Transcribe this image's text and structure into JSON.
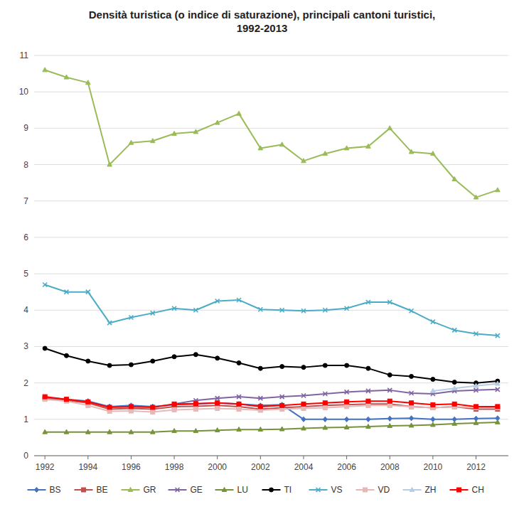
{
  "chart_data": {
    "type": "line",
    "title": "Densità  turistica (o indice di saturazione), principali cantoni turistici,\n1992-2013",
    "x": [
      1992,
      1993,
      1994,
      1995,
      1996,
      1997,
      1998,
      1999,
      2000,
      2001,
      2002,
      2003,
      2004,
      2005,
      2006,
      2007,
      2008,
      2009,
      2010,
      2011,
      2012,
      2013
    ],
    "series": [
      {
        "name": "BS",
        "color": "#4472C4",
        "marker": "diamond",
        "values": [
          1.6,
          1.55,
          1.5,
          1.35,
          1.38,
          1.35,
          1.4,
          1.42,
          1.45,
          1.42,
          1.38,
          1.4,
          1.0,
          1.0,
          1.0,
          1.0,
          1.02,
          1.03,
          1.0,
          1.0,
          1.02,
          1.03
        ]
      },
      {
        "name": "BE",
        "color": "#C0504D",
        "marker": "square",
        "values": [
          1.58,
          1.52,
          1.45,
          1.28,
          1.3,
          1.28,
          1.35,
          1.36,
          1.38,
          1.35,
          1.28,
          1.32,
          1.35,
          1.38,
          1.4,
          1.42,
          1.42,
          1.35,
          1.32,
          1.35,
          1.28,
          1.28
        ]
      },
      {
        "name": "GR",
        "color": "#9BBB59",
        "marker": "triangle",
        "values": [
          10.6,
          10.4,
          10.25,
          8.0,
          8.6,
          8.65,
          8.85,
          8.9,
          9.15,
          9.4,
          8.45,
          8.55,
          8.1,
          8.3,
          8.45,
          8.5,
          9.0,
          8.35,
          8.3,
          7.6,
          7.1,
          7.3
        ]
      },
      {
        "name": "GE",
        "color": "#8064A2",
        "marker": "x",
        "values": [
          null,
          null,
          null,
          null,
          null,
          null,
          1.42,
          1.52,
          1.58,
          1.62,
          1.58,
          1.62,
          1.65,
          1.7,
          1.75,
          1.78,
          1.8,
          1.72,
          1.7,
          1.78,
          1.8,
          1.82
        ]
      },
      {
        "name": "LU",
        "color": "#76933C",
        "marker": "triangle",
        "values": [
          0.65,
          0.65,
          0.65,
          0.65,
          0.65,
          0.65,
          0.68,
          0.68,
          0.7,
          0.72,
          0.72,
          0.73,
          0.75,
          0.77,
          0.78,
          0.8,
          0.82,
          0.83,
          0.85,
          0.88,
          0.9,
          0.92
        ]
      },
      {
        "name": "TI",
        "color": "#000000",
        "marker": "circle",
        "values": [
          2.95,
          2.75,
          2.6,
          2.48,
          2.5,
          2.6,
          2.72,
          2.78,
          2.68,
          2.55,
          2.4,
          2.45,
          2.43,
          2.48,
          2.48,
          2.4,
          2.22,
          2.18,
          2.1,
          2.02,
          2.0,
          2.05
        ]
      },
      {
        "name": "VS",
        "color": "#4BACC6",
        "marker": "x",
        "values": [
          4.7,
          4.5,
          4.5,
          3.65,
          3.8,
          3.92,
          4.05,
          4.0,
          4.25,
          4.28,
          4.02,
          4.0,
          3.98,
          4.0,
          4.05,
          4.22,
          4.22,
          3.98,
          3.68,
          3.45,
          3.35,
          3.3
        ]
      },
      {
        "name": "VD",
        "color": "#E6B8B7",
        "marker": "square",
        "values": [
          1.55,
          1.5,
          1.38,
          1.22,
          1.23,
          1.2,
          1.26,
          1.28,
          1.3,
          1.28,
          1.25,
          1.28,
          1.3,
          1.32,
          1.35,
          1.38,
          1.38,
          1.35,
          1.32,
          1.35,
          1.32,
          1.32
        ]
      },
      {
        "name": "ZH",
        "color": "#B8CCE4",
        "marker": "triangle",
        "values": [
          null,
          null,
          null,
          null,
          null,
          null,
          null,
          null,
          null,
          null,
          null,
          null,
          null,
          null,
          null,
          null,
          null,
          null,
          1.78,
          1.85,
          1.92,
          1.98
        ]
      },
      {
        "name": "CH",
        "color": "#FF0000",
        "marker": "square",
        "values": [
          1.62,
          1.55,
          1.48,
          1.33,
          1.35,
          1.33,
          1.42,
          1.43,
          1.45,
          1.42,
          1.35,
          1.38,
          1.42,
          1.45,
          1.48,
          1.5,
          1.5,
          1.45,
          1.4,
          1.42,
          1.35,
          1.35
        ]
      }
    ],
    "xlim": [
      1991.5,
      2013.5
    ],
    "xticks": [
      1992,
      1994,
      1996,
      1998,
      2000,
      2002,
      2004,
      2006,
      2008,
      2010,
      2012
    ],
    "ylim": [
      0,
      11
    ],
    "yticks": [
      0,
      1,
      2,
      3,
      4,
      5,
      6,
      7,
      8,
      9,
      10,
      11
    ],
    "grid": true,
    "legend": "bottom"
  }
}
